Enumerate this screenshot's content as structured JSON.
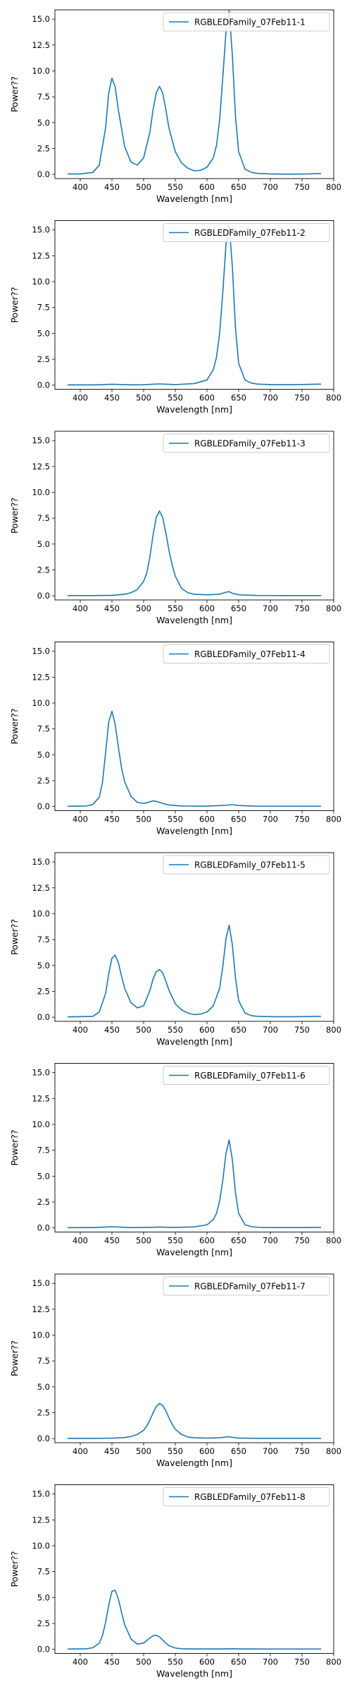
{
  "chart_data": [
    {
      "type": "line",
      "xlabel": "Wavelength [nm]",
      "ylabel": "Power??",
      "xlim": [
        360,
        800
      ],
      "ylim": [
        -0.4,
        15.9
      ],
      "xticks": [
        400,
        450,
        500,
        550,
        600,
        650,
        700,
        750,
        800
      ],
      "yticks": [
        0.0,
        2.5,
        5.0,
        7.5,
        10.0,
        12.5,
        15.0
      ],
      "legend_position": "top-right",
      "series": [
        {
          "name": "RGBLEDFamily_07Feb11-1",
          "color": "#1f77b4",
          "x": [
            380,
            400,
            420,
            430,
            440,
            445,
            450,
            455,
            460,
            470,
            480,
            490,
            500,
            510,
            515,
            520,
            525,
            530,
            535,
            540,
            550,
            560,
            570,
            580,
            590,
            600,
            610,
            615,
            620,
            625,
            630,
            635,
            640,
            645,
            650,
            660,
            670,
            680,
            700,
            720,
            740,
            760,
            780
          ],
          "y": [
            0.05,
            0.05,
            0.2,
            0.9,
            4.5,
            7.9,
            9.3,
            8.5,
            6.3,
            2.7,
            1.2,
            0.9,
            1.6,
            4.1,
            6.3,
            7.9,
            8.5,
            7.9,
            6.3,
            4.5,
            2.2,
            1.1,
            0.6,
            0.35,
            0.4,
            0.7,
            1.6,
            2.8,
            5.3,
            9.4,
            13.8,
            15.8,
            11.6,
            5.6,
            2.2,
            0.5,
            0.2,
            0.1,
            0.05,
            0.03,
            0.03,
            0.05,
            0.1
          ]
        }
      ]
    },
    {
      "type": "line",
      "xlabel": "Wavelength [nm]",
      "ylabel": "Power??",
      "xlim": [
        360,
        800
      ],
      "ylim": [
        -0.4,
        15.9
      ],
      "xticks": [
        400,
        450,
        500,
        550,
        600,
        650,
        700,
        750,
        800
      ],
      "yticks": [
        0.0,
        2.5,
        5.0,
        7.5,
        10.0,
        12.5,
        15.0
      ],
      "legend_position": "top-right",
      "series": [
        {
          "name": "RGBLEDFamily_07Feb11-2",
          "color": "#1f77b4",
          "x": [
            380,
            420,
            450,
            480,
            500,
            525,
            550,
            580,
            600,
            610,
            615,
            620,
            625,
            630,
            635,
            640,
            645,
            650,
            660,
            670,
            680,
            700,
            740,
            780
          ],
          "y": [
            0.02,
            0.02,
            0.08,
            0.03,
            0.04,
            0.12,
            0.05,
            0.15,
            0.5,
            1.5,
            2.7,
            5.0,
            9.0,
            13.6,
            15.5,
            11.5,
            5.5,
            2.1,
            0.5,
            0.2,
            0.1,
            0.05,
            0.05,
            0.1
          ]
        }
      ]
    },
    {
      "type": "line",
      "xlabel": "Wavelength [nm]",
      "ylabel": "Power??",
      "xlim": [
        360,
        800
      ],
      "ylim": [
        -0.4,
        15.9
      ],
      "xticks": [
        400,
        450,
        500,
        550,
        600,
        650,
        700,
        750,
        800
      ],
      "yticks": [
        0.0,
        2.5,
        5.0,
        7.5,
        10.0,
        12.5,
        15.0
      ],
      "legend_position": "top-right",
      "series": [
        {
          "name": "RGBLEDFamily_07Feb11-3",
          "color": "#1f77b4",
          "x": [
            380,
            420,
            450,
            470,
            480,
            490,
            500,
            505,
            510,
            515,
            520,
            525,
            530,
            535,
            540,
            545,
            550,
            560,
            570,
            580,
            600,
            620,
            630,
            635,
            640,
            650,
            680,
            720,
            780
          ],
          "y": [
            0.02,
            0.02,
            0.05,
            0.15,
            0.3,
            0.6,
            1.4,
            2.2,
            3.8,
            5.9,
            7.6,
            8.2,
            7.6,
            6.1,
            4.4,
            3.0,
            1.9,
            0.7,
            0.3,
            0.15,
            0.1,
            0.15,
            0.35,
            0.4,
            0.25,
            0.1,
            0.03,
            0.02,
            0.02
          ]
        }
      ]
    },
    {
      "type": "line",
      "xlabel": "Wavelength [nm]",
      "ylabel": "Power??",
      "xlim": [
        360,
        800
      ],
      "ylim": [
        -0.4,
        15.9
      ],
      "xticks": [
        400,
        450,
        500,
        550,
        600,
        650,
        700,
        750,
        800
      ],
      "yticks": [
        0.0,
        2.5,
        5.0,
        7.5,
        10.0,
        12.5,
        15.0
      ],
      "legend_position": "top-right",
      "series": [
        {
          "name": "RGBLEDFamily_07Feb11-4",
          "color": "#1f77b4",
          "x": [
            380,
            410,
            420,
            430,
            435,
            440,
            445,
            450,
            455,
            460,
            465,
            470,
            480,
            490,
            500,
            510,
            515,
            520,
            530,
            540,
            560,
            600,
            630,
            640,
            650,
            680,
            720,
            780
          ],
          "y": [
            0.02,
            0.05,
            0.2,
            0.9,
            2.3,
            5.2,
            8.2,
            9.2,
            8.0,
            5.8,
            3.8,
            2.4,
            1.0,
            0.4,
            0.3,
            0.45,
            0.55,
            0.5,
            0.3,
            0.15,
            0.05,
            0.04,
            0.12,
            0.18,
            0.1,
            0.03,
            0.02,
            0.02
          ]
        }
      ]
    },
    {
      "type": "line",
      "xlabel": "Wavelength [nm]",
      "ylabel": "Power??",
      "xlim": [
        360,
        800
      ],
      "ylim": [
        -0.4,
        15.9
      ],
      "xticks": [
        400,
        450,
        500,
        550,
        600,
        650,
        700,
        750,
        800
      ],
      "yticks": [
        0.0,
        2.5,
        5.0,
        7.5,
        10.0,
        12.5,
        15.0
      ],
      "legend_position": "top-right",
      "series": [
        {
          "name": "RGBLEDFamily_07Feb11-5",
          "color": "#1f77b4",
          "x": [
            380,
            420,
            430,
            440,
            445,
            450,
            455,
            460,
            465,
            470,
            480,
            490,
            500,
            510,
            515,
            520,
            525,
            530,
            535,
            540,
            550,
            560,
            570,
            580,
            590,
            600,
            610,
            620,
            625,
            630,
            635,
            640,
            645,
            650,
            660,
            670,
            680,
            700,
            740,
            780
          ],
          "y": [
            0.03,
            0.08,
            0.5,
            2.3,
            4.2,
            5.7,
            6.0,
            5.3,
            4.0,
            2.8,
            1.4,
            0.9,
            1.1,
            2.6,
            3.7,
            4.4,
            4.6,
            4.3,
            3.5,
            2.6,
            1.3,
            0.7,
            0.4,
            0.25,
            0.3,
            0.5,
            1.1,
            2.8,
            4.9,
            7.6,
            8.9,
            7.0,
            3.8,
            1.6,
            0.4,
            0.15,
            0.08,
            0.05,
            0.05,
            0.08
          ]
        }
      ]
    },
    {
      "type": "line",
      "xlabel": "Wavelength [nm]",
      "ylabel": "Power??",
      "xlim": [
        360,
        800
      ],
      "ylim": [
        -0.4,
        15.9
      ],
      "xticks": [
        400,
        450,
        500,
        550,
        600,
        650,
        700,
        750,
        800
      ],
      "yticks": [
        0.0,
        2.5,
        5.0,
        7.5,
        10.0,
        12.5,
        15.0
      ],
      "legend_position": "top-right",
      "series": [
        {
          "name": "RGBLEDFamily_07Feb11-6",
          "color": "#1f77b4",
          "x": [
            380,
            420,
            440,
            450,
            460,
            480,
            500,
            525,
            550,
            580,
            600,
            610,
            615,
            620,
            625,
            630,
            635,
            640,
            645,
            650,
            660,
            670,
            680,
            700,
            740,
            780
          ],
          "y": [
            0.02,
            0.03,
            0.08,
            0.12,
            0.08,
            0.03,
            0.04,
            0.08,
            0.05,
            0.1,
            0.3,
            0.8,
            1.4,
            2.6,
            4.6,
            7.2,
            8.5,
            6.6,
            3.4,
            1.4,
            0.3,
            0.12,
            0.06,
            0.03,
            0.03,
            0.05
          ]
        }
      ]
    },
    {
      "type": "line",
      "xlabel": "Wavelength [nm]",
      "ylabel": "Power??",
      "xlim": [
        360,
        800
      ],
      "ylim": [
        -0.4,
        15.9
      ],
      "xticks": [
        400,
        450,
        500,
        550,
        600,
        650,
        700,
        750,
        800
      ],
      "yticks": [
        0.0,
        2.5,
        5.0,
        7.5,
        10.0,
        12.5,
        15.0
      ],
      "legend_position": "top-right",
      "series": [
        {
          "name": "RGBLEDFamily_07Feb11-7",
          "color": "#1f77b4",
          "x": [
            380,
            420,
            450,
            470,
            480,
            490,
            500,
            505,
            510,
            515,
            520,
            525,
            530,
            535,
            540,
            545,
            550,
            560,
            570,
            580,
            600,
            620,
            630,
            635,
            640,
            650,
            680,
            720,
            780
          ],
          "y": [
            0.02,
            0.02,
            0.04,
            0.1,
            0.2,
            0.4,
            0.8,
            1.2,
            1.8,
            2.5,
            3.1,
            3.4,
            3.2,
            2.7,
            2.0,
            1.4,
            0.9,
            0.4,
            0.15,
            0.08,
            0.05,
            0.08,
            0.15,
            0.18,
            0.12,
            0.05,
            0.02,
            0.02,
            0.02
          ]
        }
      ]
    },
    {
      "type": "line",
      "xlabel": "Wavelength [nm]",
      "ylabel": "Power??",
      "xlim": [
        360,
        800
      ],
      "ylim": [
        -0.4,
        15.9
      ],
      "xticks": [
        400,
        450,
        500,
        550,
        600,
        650,
        700,
        750,
        800
      ],
      "yticks": [
        0.0,
        2.5,
        5.0,
        7.5,
        10.0,
        12.5,
        15.0
      ],
      "legend_position": "top-right",
      "series": [
        {
          "name": "RGBLEDFamily_07Feb11-8",
          "color": "#1f77b4",
          "x": [
            380,
            410,
            420,
            430,
            435,
            440,
            445,
            450,
            455,
            460,
            465,
            470,
            480,
            490,
            500,
            505,
            510,
            515,
            520,
            525,
            530,
            535,
            540,
            550,
            560,
            580,
            620,
            640,
            660,
            700,
            780
          ],
          "y": [
            0.02,
            0.05,
            0.15,
            0.6,
            1.3,
            2.6,
            4.3,
            5.6,
            5.7,
            4.9,
            3.6,
            2.4,
            1.0,
            0.5,
            0.6,
            0.85,
            1.1,
            1.3,
            1.35,
            1.2,
            0.9,
            0.6,
            0.35,
            0.12,
            0.05,
            0.03,
            0.03,
            0.05,
            0.03,
            0.02,
            0.02
          ]
        }
      ]
    }
  ]
}
